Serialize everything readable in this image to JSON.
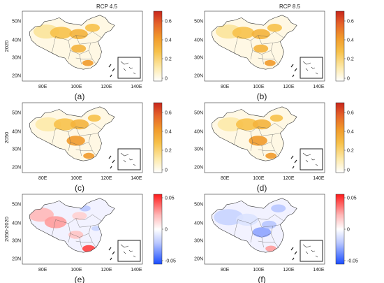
{
  "figure": {
    "column_titles": [
      "RCP 4.5",
      "RCP 8.5"
    ],
    "row_labels": [
      "2020",
      "2050",
      "2050-2020"
    ],
    "panel_letters": [
      "(a)",
      "(b)",
      "(c)",
      "(d)",
      "(e)",
      "(f)"
    ],
    "x_ticks": [
      "80E",
      "100E",
      "120E",
      "140E"
    ],
    "y_ticks": [
      "50N",
      "40N",
      "30N",
      "20N"
    ],
    "colorbar_seq": {
      "labels": [
        "0.6",
        "0.4",
        "0.2",
        "0"
      ],
      "colors": [
        "#ffffff",
        "#fde9a8",
        "#f7c14a",
        "#f19a2b",
        "#e5632a",
        "#c8261c"
      ]
    },
    "colorbar_div": {
      "labels": [
        "0.05",
        "0",
        "-0.05"
      ],
      "colors": [
        "#1a4dff",
        "#b8c6ff",
        "#ffffff",
        "#ffb8b8",
        "#ff1a1a"
      ]
    }
  }
}
